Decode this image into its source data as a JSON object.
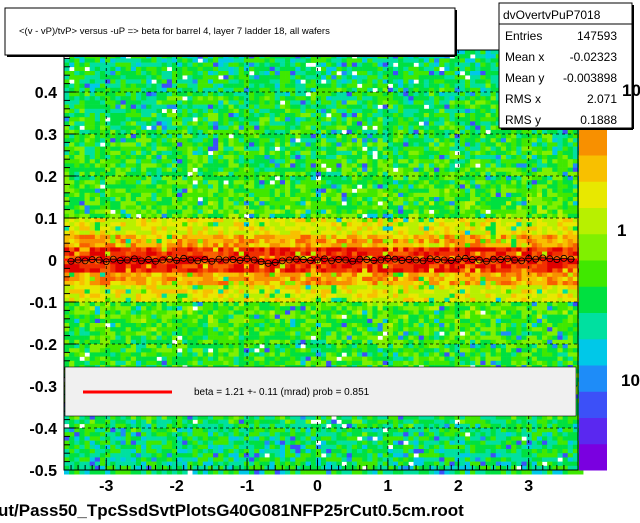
{
  "chart_data": {
    "type": "heatmap",
    "title": "<(v - vP)/tvP> versus  -uP => beta for barrel 4, layer 7 ladder 18, all wafers",
    "xlabel": "",
    "ylabel": "",
    "xlim": [
      -3.6,
      3.7
    ],
    "ylim": [
      -0.5,
      0.5
    ],
    "x_ticks": [
      "-3",
      "-2",
      "-1",
      "0",
      "1",
      "2",
      "3"
    ],
    "y_ticks": [
      "-0.5",
      "-0.4",
      "-0.3",
      "-0.2",
      "-0.1",
      "0",
      "0.1",
      "0.2",
      "0.3",
      "0.4"
    ],
    "colorbar_labels": [
      "10",
      "1",
      "10"
    ],
    "grid": true,
    "profile_points": {
      "x": [
        -3.5,
        -3.4,
        -3.3,
        -3.2,
        -3.1,
        -3.0,
        -2.9,
        -2.8,
        -2.7,
        -2.6,
        -2.5,
        -2.4,
        -2.3,
        -2.2,
        -2.1,
        -2.0,
        -1.9,
        -1.8,
        -1.7,
        -1.6,
        -1.5,
        -1.4,
        -1.3,
        -1.2,
        -1.1,
        -1.0,
        -0.9,
        -0.8,
        -0.7,
        -0.6,
        -0.5,
        -0.4,
        -0.3,
        -0.2,
        -0.1,
        0.0,
        0.1,
        0.2,
        0.3,
        0.4,
        0.5,
        0.6,
        0.7,
        0.8,
        0.9,
        1.0,
        1.1,
        1.2,
        1.3,
        1.4,
        1.5,
        1.6,
        1.7,
        1.8,
        1.9,
        2.0,
        2.1,
        2.2,
        2.3,
        2.4,
        2.5,
        2.6,
        2.7,
        2.8,
        2.9,
        3.0,
        3.1,
        3.2,
        3.3,
        3.4,
        3.5,
        3.6
      ],
      "y": [
        -0.003,
        0.0,
        -0.002,
        0.001,
        0.0,
        -0.004,
        0.002,
        -0.001,
        0.0,
        0.003,
        -0.002,
        0.001,
        -0.003,
        0.0,
        0.002,
        -0.001,
        0.004,
        0.0,
        -0.002,
        0.001,
        -0.003,
        0.002,
        0.0,
        0.001,
        -0.001,
        0.003,
        0.0,
        -0.004,
        -0.008,
        -0.006,
        -0.002,
        0.0,
        0.002,
        0.001,
        -0.001,
        0.0,
        0.003,
        -0.002,
        0.001,
        0.0,
        -0.003,
        0.002,
        0.001,
        -0.001,
        0.0,
        0.004,
        0.002,
        -0.001,
        0.001,
        0.0,
        -0.002,
        0.003,
        0.001,
        0.0,
        -0.001,
        0.002,
        0.004,
        0.001,
        0.0,
        -0.003,
        0.002,
        0.001,
        0.003,
        0.0,
        -0.002,
        0.004,
        0.002,
        0.005,
        0.003,
        0.001,
        0.004,
        0.002
      ]
    },
    "fit": {
      "label": "beta =    1.21 +-  0.11 (mrad) prob = 0.851",
      "color": "#ff0000"
    }
  },
  "stats": {
    "name": "dvOvertvPuP7018",
    "rows": [
      {
        "label": "Entries",
        "value": "147593"
      },
      {
        "label": "Mean x",
        "value": "-0.02323"
      },
      {
        "label": "Mean y",
        "value": "-0.003898"
      },
      {
        "label": "RMS x",
        "value": "2.071"
      },
      {
        "label": "RMS y",
        "value": "0.1888"
      }
    ]
  },
  "footer": "ut/Pass50_TpcSsdSvtPlotsG40G081NFP25rCut0.5cm.root",
  "colors": {
    "palette": [
      "#7a00e0",
      "#5a28f0",
      "#3c50f8",
      "#1e8cf8",
      "#00c8e8",
      "#00e0a0",
      "#00e040",
      "#40e800",
      "#80f000",
      "#b8f000",
      "#e8e800",
      "#f8c000",
      "#f89000",
      "#f86000",
      "#f03000",
      "#e00000"
    ]
  }
}
